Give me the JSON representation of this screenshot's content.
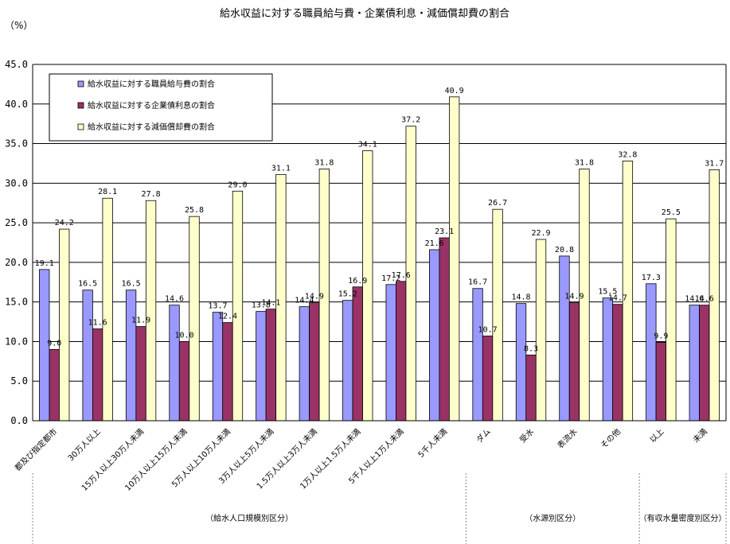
{
  "chart_data": {
    "type": "bar",
    "title": "給水収益に対する職員給与費・企業債利息・減価償却費の割合",
    "unit_label": "（%）",
    "ylim": [
      0,
      45
    ],
    "yticks": [
      "0.0",
      "5.0",
      "10.0",
      "15.0",
      "20.0",
      "25.0",
      "30.0",
      "35.0",
      "40.0",
      "45.0"
    ],
    "ytick_values": [
      0,
      5,
      10,
      15,
      20,
      25,
      30,
      35,
      40,
      45
    ],
    "grid": true,
    "legend_position": "top-left",
    "categories": [
      "都及び指定都市",
      "30万人以上",
      "15万人以上30万人未満",
      "10万人以上15万人未満",
      "5万人以上10万人未満",
      "3万人以上5万人未満",
      "1.5万人以上3万人未満",
      "1万人以上1.5万人未満",
      "5千人以上1万人未満",
      "5千人未満",
      "ダム",
      "受水",
      "表流水",
      "その他",
      "以上",
      "未満"
    ],
    "series": [
      {
        "name": "給水収益に対する職員給与費の割合",
        "color": "#9999ff",
        "values": [
          19.1,
          16.5,
          16.5,
          14.6,
          13.7,
          13.8,
          14.4,
          15.2,
          17.2,
          21.6,
          16.7,
          14.8,
          20.8,
          15.5,
          17.3,
          14.6
        ],
        "labels": [
          "19.1",
          "16.5",
          "16.5",
          "14.6",
          "13.7",
          "13.8",
          "14.4",
          "15.2",
          "17.2",
          "21.6",
          "16.7",
          "14.8",
          "20.8",
          "15.5",
          "17.3",
          "14.6"
        ]
      },
      {
        "name": "給水収益に対する企業債利息の割合",
        "color": "#993366",
        "values": [
          9.0,
          11.6,
          11.9,
          10.0,
          12.4,
          14.1,
          14.9,
          16.9,
          17.6,
          23.1,
          10.7,
          8.3,
          14.9,
          14.7,
          9.9,
          14.6
        ],
        "labels": [
          "9.0",
          "11.6",
          "11.9",
          "10.0",
          "12.4",
          "14.1",
          "14.9",
          "16.9",
          "17.6",
          "23.1",
          "10.7",
          "8.3",
          "14.9",
          "14.7",
          "9.9",
          "14.6"
        ]
      },
      {
        "name": "給水収益に対する減価償却費の割合",
        "color": "#ffffcc",
        "values": [
          24.2,
          28.1,
          27.8,
          25.8,
          29.0,
          31.1,
          31.8,
          34.1,
          37.2,
          40.9,
          26.7,
          22.9,
          31.8,
          32.8,
          25.5,
          31.7
        ],
        "labels": [
          "24.2",
          "28.1",
          "27.8",
          "25.8",
          "29.0",
          "31.1",
          "31.8",
          "34.1",
          "37.2",
          "40.9",
          "26.7",
          "22.9",
          "31.8",
          "32.8",
          "25.5",
          "31.7"
        ]
      }
    ],
    "groups": [
      {
        "label": "（給水人口規模別区分）",
        "from": 0,
        "to": 9
      },
      {
        "label": "（水源別区分）",
        "from": 10,
        "to": 13
      },
      {
        "label": "（有収水量密度別区分）",
        "from": 14,
        "to": 15
      }
    ]
  }
}
